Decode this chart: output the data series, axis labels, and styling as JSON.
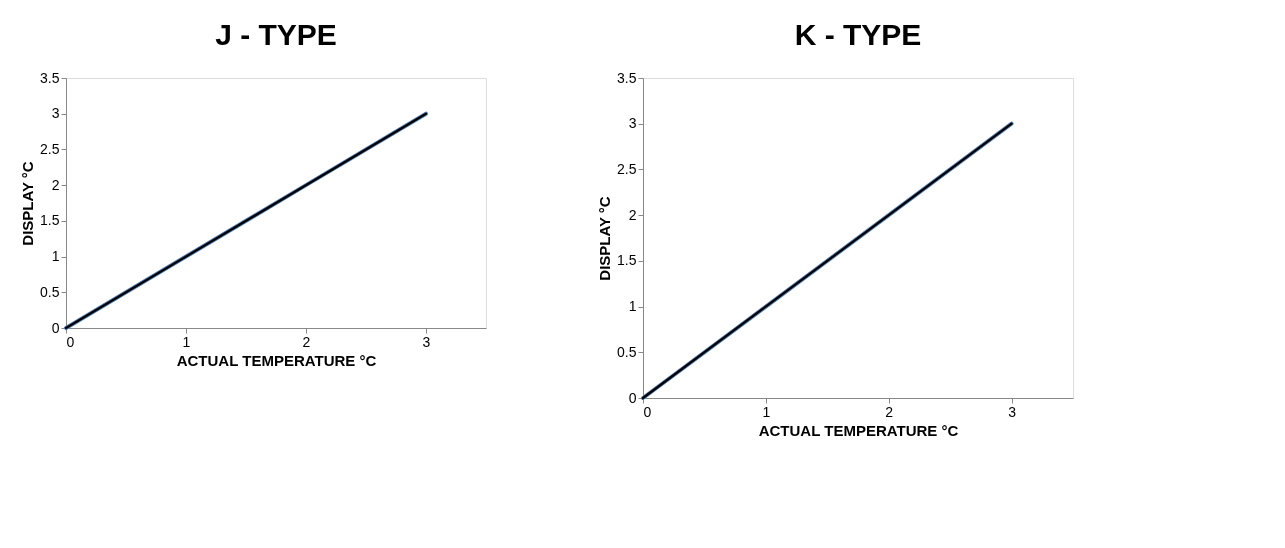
{
  "chart_data": [
    {
      "type": "line",
      "title": "J - TYPE",
      "xlabel": "ACTUAL TEMPERATURE °C",
      "ylabel": "DISPLAY °C",
      "xlim": [
        0,
        3.5
      ],
      "xticks": [
        0,
        1,
        2,
        3
      ],
      "ylim": [
        0,
        3.5
      ],
      "yticks": [
        0,
        0.5,
        1,
        1.5,
        2,
        2.5,
        3,
        3.5
      ],
      "grid": false,
      "legend": false,
      "marker": "none",
      "series": [
        {
          "color": "#4f81bd",
          "x": [
            0,
            1,
            2,
            3
          ],
          "values": [
            0,
            1,
            2,
            3
          ]
        },
        {
          "color": "#000000",
          "x": [
            0,
            3
          ],
          "values": [
            0,
            3
          ]
        }
      ]
    },
    {
      "type": "line",
      "title": "K - TYPE",
      "xlabel": "ACTUAL TEMPERATURE °C",
      "ylabel": "DISPLAY °C",
      "xlim": [
        0,
        3.5
      ],
      "xticks": [
        0,
        1,
        2,
        3
      ],
      "ylim": [
        0,
        3.5
      ],
      "yticks": [
        0,
        0.5,
        1,
        1.5,
        2,
        2.5,
        3,
        3.5
      ],
      "grid": false,
      "legend": false,
      "marker": "none",
      "series": [
        {
          "color": "#4f81bd",
          "x": [
            0,
            1,
            2,
            3
          ],
          "values": [
            0,
            1,
            2,
            3
          ]
        },
        {
          "color": "#000000",
          "x": [
            0,
            3
          ],
          "values": [
            0,
            3
          ]
        }
      ]
    }
  ]
}
